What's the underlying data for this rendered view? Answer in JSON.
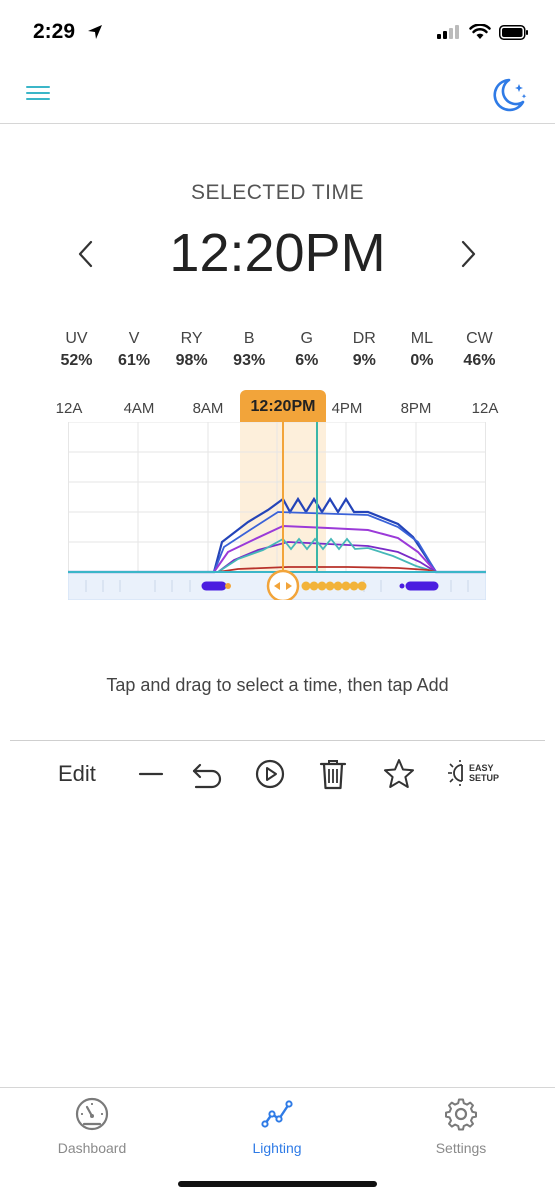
{
  "status": {
    "time": "2:29"
  },
  "header": {
    "menu_icon": "hamburger-icon",
    "mode_icon": "moon-stars-icon"
  },
  "selected": {
    "label": "SELECTED TIME",
    "time": "12:20PM"
  },
  "channels": [
    {
      "name": "UV",
      "value": "52%"
    },
    {
      "name": "V",
      "value": "61%"
    },
    {
      "name": "RY",
      "value": "98%"
    },
    {
      "name": "B",
      "value": "93%"
    },
    {
      "name": "G",
      "value": "6%"
    },
    {
      "name": "DR",
      "value": "9%"
    },
    {
      "name": "ML",
      "value": "0%"
    },
    {
      "name": "CW",
      "value": "46%"
    }
  ],
  "timeline": {
    "hour_labels": [
      "12A",
      "4AM",
      "8AM",
      "4PM",
      "8PM",
      "12A"
    ],
    "flag_label": "12:20PM"
  },
  "hint": "Tap and drag to select a time, then tap Add",
  "toolbar": {
    "edit_label": "Edit",
    "easy_line1": "EASY",
    "easy_line2": "SETUP"
  },
  "tabs": [
    {
      "label": "Dashboard",
      "icon": "gauge-icon",
      "active": false
    },
    {
      "label": "Lighting",
      "icon": "chart-line-icon",
      "active": true
    },
    {
      "label": "Settings",
      "icon": "gear-icon",
      "active": false
    }
  ],
  "colors": {
    "accent": "#2f7be6",
    "teal": "#3bb6c8",
    "orange": "#f2a43a"
  }
}
